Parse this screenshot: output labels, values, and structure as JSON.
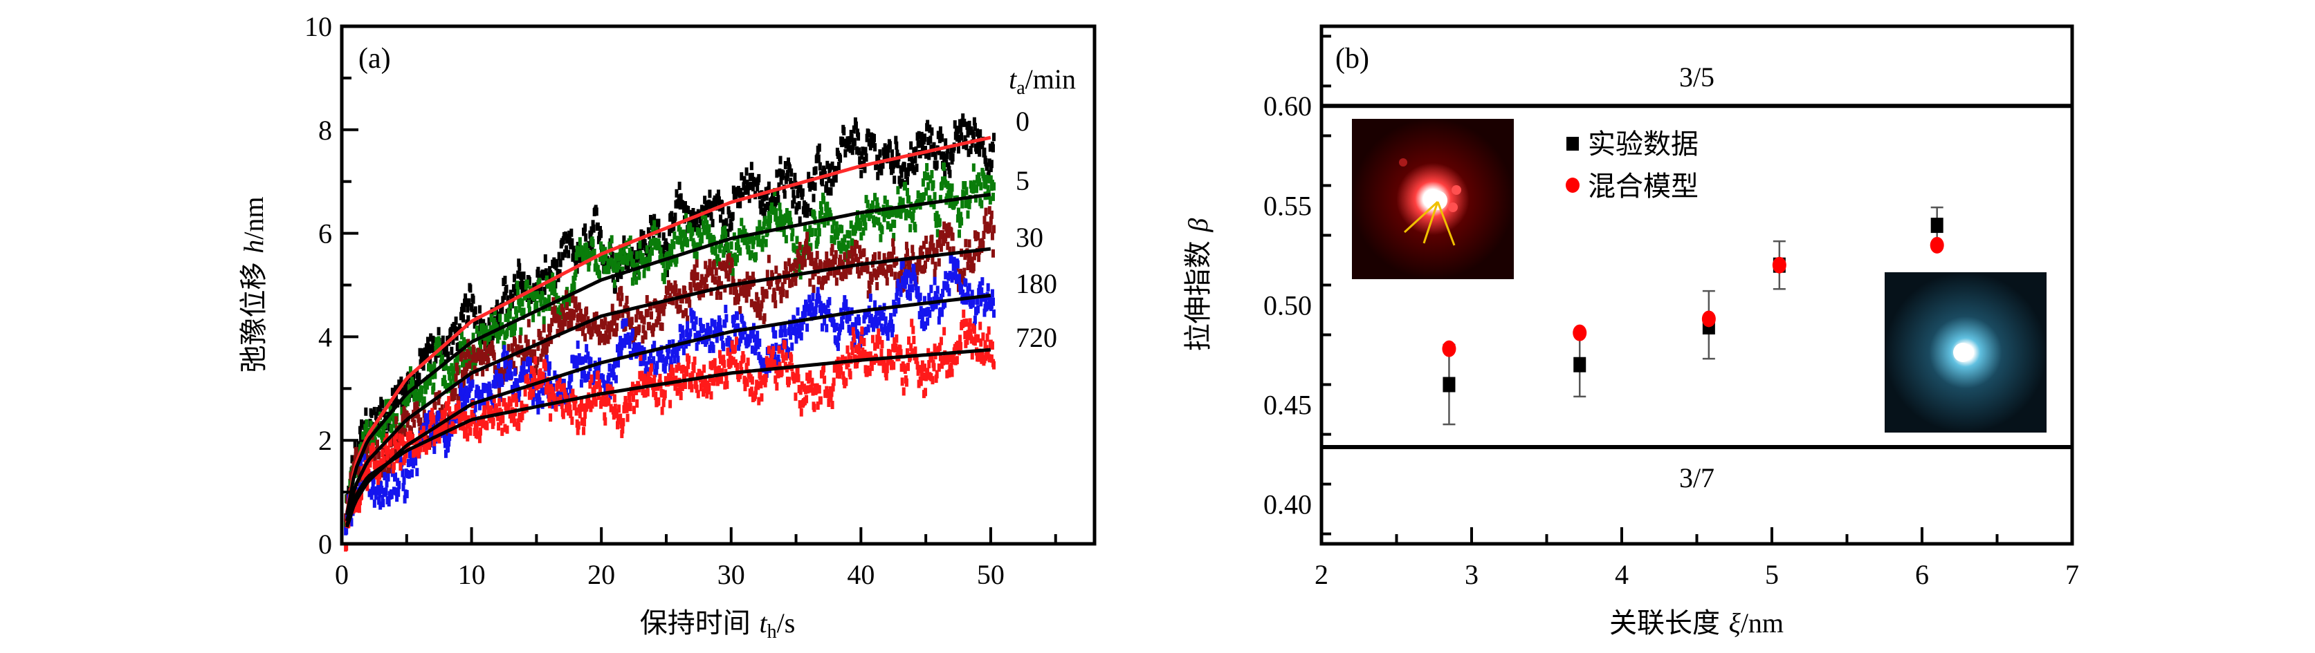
{
  "chart_data": [
    {
      "type": "scatter",
      "panel_label": "(a)",
      "xlabel": "保持时间 t_h/s",
      "xlabel_parts": {
        "text": "保持时间 ",
        "var": "t",
        "sub": "h",
        "unit": "/s"
      },
      "ylabel": "弛豫位移 h/nm",
      "ylabel_parts": {
        "text": "弛豫位移 ",
        "var": "h",
        "unit": "/nm"
      },
      "xlim": [
        0,
        58
      ],
      "ylim": [
        0,
        10
      ],
      "xticks": [
        0,
        10,
        20,
        30,
        40,
        50
      ],
      "yticks": [
        0,
        2,
        4,
        6,
        8,
        10
      ],
      "grid": false,
      "legend_title": {
        "var": "t",
        "sub": "a",
        "unit": "/min"
      },
      "x": [
        0,
        1,
        2,
        5,
        10,
        20,
        30,
        40,
        50
      ],
      "series": [
        {
          "name": "0",
          "color": "#000000",
          "fit_color": "#ff2a2a",
          "fit": [
            0,
            1.5,
            2.1,
            3.2,
            4.3,
            5.6,
            6.6,
            7.3,
            7.85
          ]
        },
        {
          "name": "5",
          "color": "#0a7d0a",
          "fit_color": "#000000",
          "fit": [
            0,
            1.4,
            2.0,
            2.9,
            3.9,
            5.1,
            5.9,
            6.4,
            6.75
          ]
        },
        {
          "name": "30",
          "color": "#8b1010",
          "fit_color": "#000000",
          "fit": [
            0,
            1.1,
            1.6,
            2.4,
            3.3,
            4.4,
            5.0,
            5.4,
            5.7
          ]
        },
        {
          "name": "180",
          "color": "#1515ee",
          "fit_color": "#000000",
          "fit": [
            0,
            0.8,
            1.2,
            1.9,
            2.7,
            3.5,
            4.1,
            4.5,
            4.8
          ]
        },
        {
          "name": "720",
          "color": "#ff1a1a",
          "fit_color": "#000000",
          "fit": [
            0,
            0.9,
            1.3,
            1.8,
            2.4,
            2.9,
            3.3,
            3.55,
            3.75
          ]
        }
      ]
    },
    {
      "type": "scatter",
      "panel_label": "(b)",
      "xlabel": "关联长度 ξ/nm",
      "xlabel_parts": {
        "text": "关联长度 ",
        "var": "ξ",
        "unit": "/nm"
      },
      "ylabel": "拉伸指数 β",
      "ylabel_parts": {
        "text": "拉伸指数 ",
        "var": "β"
      },
      "xlim": [
        2,
        7
      ],
      "ylim": [
        0.38,
        0.64
      ],
      "xticks": [
        2,
        3,
        4,
        5,
        6,
        7
      ],
      "yticks": [
        "0.40",
        "0.45",
        "0.50",
        "0.55",
        "0.60"
      ],
      "grid": false,
      "reference_lines": [
        {
          "value": 0.6,
          "label": "3/5"
        },
        {
          "value": 0.4286,
          "label": "3/7"
        }
      ],
      "legend": {
        "position": "top-center",
        "entries": [
          "实验数据",
          "混合模型"
        ]
      },
      "series": [
        {
          "name": "实验数据",
          "marker": "square",
          "color": "#000000",
          "x": [
            2.85,
            3.72,
            4.58,
            5.05,
            6.1
          ],
          "y": [
            0.46,
            0.47,
            0.489,
            0.52,
            0.54
          ],
          "err_low": [
            0.44,
            0.454,
            0.473,
            0.508,
            0.531
          ],
          "err_high": [
            0.48,
            0.486,
            0.507,
            0.532,
            0.549
          ]
        },
        {
          "name": "混合模型",
          "marker": "circle",
          "color": "#ff0000",
          "x": [
            2.85,
            3.72,
            4.58,
            5.05,
            6.1
          ],
          "y": [
            0.478,
            0.486,
            0.493,
            0.52,
            0.53
          ]
        }
      ],
      "insets": [
        {
          "name": "red-diffraction-pattern",
          "position": "top-left"
        },
        {
          "name": "blue-diffraction-pattern",
          "position": "bottom-right"
        }
      ]
    }
  ]
}
